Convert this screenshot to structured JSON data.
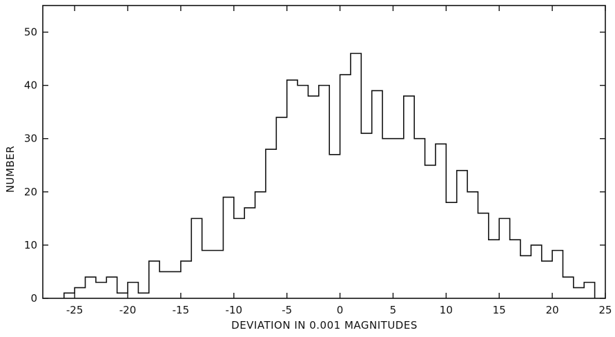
{
  "chart_data": {
    "type": "bar",
    "style": "step-histogram",
    "title": "",
    "xlabel": "DEVIATION IN 0.001 MAGNITUDES",
    "ylabel": "NUMBER",
    "xlim": [
      -28,
      25
    ],
    "ylim": [
      0,
      55
    ],
    "x_ticks": [
      -25,
      -20,
      -15,
      -10,
      -5,
      0,
      5,
      10,
      15,
      20,
      25
    ],
    "x_tick_labels": [
      "-25",
      "-20",
      "-15",
      "-10",
      "-5",
      "0",
      "5",
      "10",
      "15",
      "20",
      "25"
    ],
    "y_ticks": [
      0,
      10,
      20,
      30,
      40,
      50
    ],
    "y_tick_labels": [
      "0",
      "10",
      "20",
      "30",
      "40",
      "50"
    ],
    "bin_width": 1,
    "bin_left_edges": [
      -26,
      -25,
      -24,
      -23,
      -22,
      -21,
      -20,
      -19,
      -18,
      -17,
      -16,
      -15,
      -14,
      -13,
      -12,
      -11,
      -10,
      -9,
      -8,
      -7,
      -6,
      -5,
      -4,
      -3,
      -2,
      -1,
      0,
      1,
      2,
      3,
      4,
      5,
      6,
      7,
      8,
      9,
      10,
      11,
      12,
      13,
      14,
      15,
      16,
      17,
      18,
      19,
      20,
      21,
      22,
      23
    ],
    "counts": [
      1,
      2,
      4,
      3,
      4,
      1,
      3,
      1,
      7,
      5,
      5,
      7,
      15,
      9,
      9,
      19,
      15,
      17,
      20,
      28,
      34,
      41,
      40,
      38,
      40,
      27,
      42,
      46,
      31,
      39,
      30,
      30,
      38,
      30,
      25,
      29,
      18,
      24,
      20,
      16,
      11,
      15,
      11,
      8,
      10,
      7,
      9,
      4,
      2,
      3
    ],
    "grid": false,
    "legend": "none",
    "line_color": "#111111"
  }
}
